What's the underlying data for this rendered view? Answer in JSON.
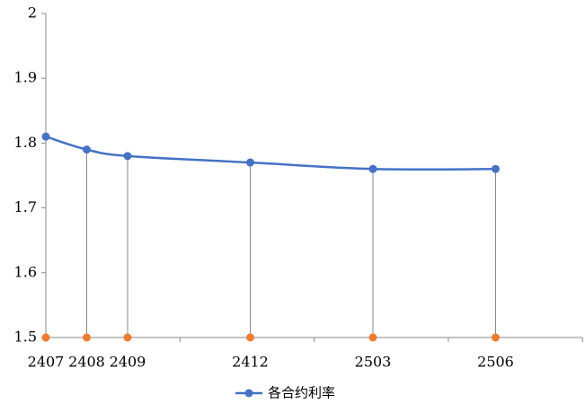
{
  "chart_data": {
    "type": "line",
    "x": [
      "2407",
      "2408",
      "2409",
      "2412",
      "2503",
      "2506"
    ],
    "series": [
      {
        "name": "各合约利率",
        "color": "#4472c4",
        "values": [
          1.81,
          1.79,
          1.78,
          1.77,
          1.76,
          1.76
        ]
      },
      {
        "color": "#ed7d31",
        "values": [
          1.5,
          1.5,
          1.5,
          1.5,
          1.5,
          1.5
        ]
      }
    ],
    "ylim": [
      1.5,
      2
    ],
    "yticks": [
      1.5,
      1.6,
      1.7,
      1.8,
      1.9,
      2
    ],
    "smooth": true,
    "legend": "bottom"
  }
}
